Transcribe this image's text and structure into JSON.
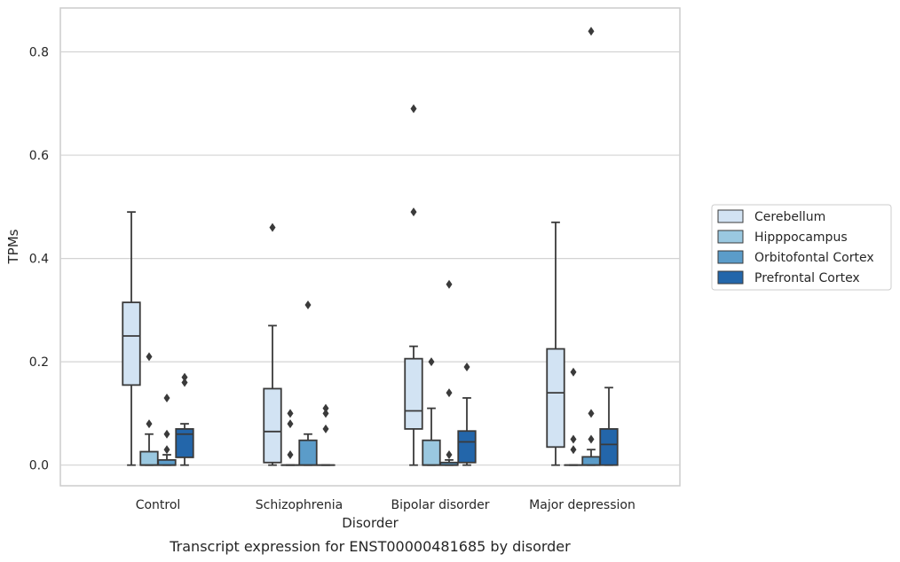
{
  "caption": "Transcript expression for ENST00000481685 by disorder",
  "chart_data": {
    "type": "box",
    "xlabel": "Disorder",
    "ylabel": "TPMs",
    "ylim": [
      -0.04,
      0.885
    ],
    "yticks": [
      "0.0",
      "0.2",
      "0.4",
      "0.6",
      "0.8"
    ],
    "ytick_values": [
      0.0,
      0.2,
      0.4,
      0.6,
      0.8
    ],
    "grid": true,
    "legend_position": "right",
    "categories": [
      "Control",
      "Schizophrenia",
      "Bipolar disorder",
      "Major depression"
    ],
    "series": [
      {
        "name": "Cerebellum",
        "color": "#d2e3f3",
        "boxes": [
          {
            "whislo": 0.0,
            "q1": 0.155,
            "med": 0.25,
            "q3": 0.315,
            "whishi": 0.49,
            "fliers": []
          },
          {
            "whislo": 0.0,
            "q1": 0.005,
            "med": 0.065,
            "q3": 0.148,
            "whishi": 0.27,
            "fliers": [
              0.46
            ]
          },
          {
            "whislo": 0.0,
            "q1": 0.07,
            "med": 0.105,
            "q3": 0.206,
            "whishi": 0.23,
            "fliers": [
              0.49,
              0.69
            ]
          },
          {
            "whislo": 0.0,
            "q1": 0.035,
            "med": 0.14,
            "q3": 0.225,
            "whishi": 0.47,
            "fliers": []
          }
        ]
      },
      {
        "name": "Hipppocampus",
        "color": "#9ac8e0",
        "boxes": [
          {
            "whislo": 0.0,
            "q1": 0.0,
            "med": 0.0,
            "q3": 0.026,
            "whishi": 0.06,
            "fliers": [
              0.08,
              0.21
            ]
          },
          {
            "whislo": 0.0,
            "q1": 0.0,
            "med": 0.0,
            "q3": 0.0,
            "whishi": 0.0,
            "fliers": [
              0.02,
              0.08,
              0.1
            ]
          },
          {
            "whislo": 0.0,
            "q1": 0.0,
            "med": 0.0,
            "q3": 0.048,
            "whishi": 0.11,
            "fliers": [
              0.2
            ]
          },
          {
            "whislo": 0.0,
            "q1": 0.0,
            "med": 0.0,
            "q3": 0.0,
            "whishi": 0.0,
            "fliers": [
              0.03,
              0.05,
              0.18
            ]
          }
        ]
      },
      {
        "name": "Orbitofontal Cortex",
        "color": "#5b9cc9",
        "boxes": [
          {
            "whislo": 0.0,
            "q1": 0.0,
            "med": 0.0,
            "q3": 0.01,
            "whishi": 0.02,
            "fliers": [
              0.03,
              0.06,
              0.13
            ]
          },
          {
            "whislo": 0.0,
            "q1": 0.0,
            "med": 0.0,
            "q3": 0.048,
            "whishi": 0.06,
            "fliers": [
              0.31
            ]
          },
          {
            "whislo": 0.0,
            "q1": 0.0,
            "med": 0.0,
            "q3": 0.005,
            "whishi": 0.01,
            "fliers": [
              0.02,
              0.14,
              0.35
            ]
          },
          {
            "whislo": 0.0,
            "q1": 0.0,
            "med": 0.0,
            "q3": 0.016,
            "whishi": 0.03,
            "fliers": [
              0.05,
              0.1,
              0.84
            ]
          }
        ]
      },
      {
        "name": "Prefrontal Cortex",
        "color": "#2366aa",
        "boxes": [
          {
            "whislo": 0.0,
            "q1": 0.015,
            "med": 0.06,
            "q3": 0.07,
            "whishi": 0.08,
            "fliers": [
              0.16,
              0.17
            ]
          },
          {
            "whislo": 0.0,
            "q1": 0.0,
            "med": 0.0,
            "q3": 0.0,
            "whishi": 0.0,
            "fliers": [
              0.07,
              0.1,
              0.11
            ]
          },
          {
            "whislo": 0.0,
            "q1": 0.005,
            "med": 0.045,
            "q3": 0.066,
            "whishi": 0.13,
            "fliers": [
              0.19
            ]
          },
          {
            "whislo": 0.0,
            "q1": 0.0,
            "med": 0.04,
            "q3": 0.07,
            "whishi": 0.15,
            "fliers": []
          }
        ]
      }
    ]
  }
}
